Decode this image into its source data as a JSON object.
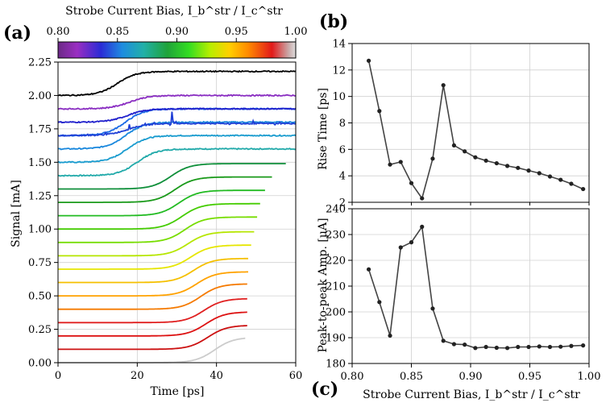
{
  "chart_data": [
    {
      "panel": "(a)",
      "type": "line",
      "xlabel": "Time [ps]",
      "ylabel": "Signal [mA]",
      "xlim": [
        0,
        60
      ],
      "ylim": [
        0,
        2.25
      ],
      "xticks": [
        "0",
        "20",
        "40",
        "60"
      ],
      "yticks": [
        "0.00",
        "0.25",
        "0.50",
        "0.75",
        "1.00",
        "1.25",
        "1.50",
        "1.75",
        "2.00",
        "2.25"
      ],
      "colorbar": {
        "title": "Strobe Current Bias, I_b^str / I_c^str",
        "range": [
          0.8,
          1.0
        ],
        "ticks": [
          "0.80",
          "0.85",
          "0.90",
          "0.95",
          "1.00"
        ]
      },
      "series": [
        {
          "baseline": 0.0,
          "rise_at": 39.5,
          "step": 0.19,
          "end": 47.3,
          "color": "#cccccc"
        },
        {
          "baseline": 0.1,
          "rise_at": 37.8,
          "step": 0.18,
          "end": 47.8,
          "color": "#cc1111"
        },
        {
          "baseline": 0.2,
          "rise_at": 37.3,
          "step": 0.18,
          "end": 47.8,
          "color": "#dd1111"
        },
        {
          "baseline": 0.3,
          "rise_at": 36.8,
          "step": 0.18,
          "end": 47.8,
          "color": "#e02020"
        },
        {
          "baseline": 0.4,
          "rise_at": 36.0,
          "step": 0.19,
          "end": 47.8,
          "color": "#f57a00"
        },
        {
          "baseline": 0.5,
          "rise_at": 35.0,
          "step": 0.18,
          "end": 48.0,
          "color": "#ffa200"
        },
        {
          "baseline": 0.6,
          "rise_at": 34.2,
          "step": 0.18,
          "end": 48.0,
          "color": "#f5c000"
        },
        {
          "baseline": 0.7,
          "rise_at": 33.5,
          "step": 0.18,
          "end": 48.8,
          "color": "#e6e600"
        },
        {
          "baseline": 0.8,
          "rise_at": 32.8,
          "step": 0.18,
          "end": 49.6,
          "color": "#b6e600"
        },
        {
          "baseline": 0.9,
          "rise_at": 32.0,
          "step": 0.19,
          "end": 50.4,
          "color": "#77dd00"
        },
        {
          "baseline": 1.0,
          "rise_at": 31.3,
          "step": 0.19,
          "end": 51.2,
          "color": "#44cc00"
        },
        {
          "baseline": 1.1,
          "rise_at": 30.5,
          "step": 0.19,
          "end": 52.4,
          "color": "#22bb22"
        },
        {
          "baseline": 1.2,
          "rise_at": 29.5,
          "step": 0.19,
          "end": 54.0,
          "color": "#1a9a1a"
        },
        {
          "baseline": 1.3,
          "rise_at": 28.5,
          "step": 0.19,
          "end": 57.6,
          "color": "#0f8f3a"
        },
        {
          "baseline": 1.4,
          "rise_at": 20.0,
          "step": 0.2,
          "end": 60,
          "color": "#22aaaa"
        },
        {
          "baseline": 1.5,
          "rise_at": 17.5,
          "step": 0.2,
          "end": 60,
          "color": "#1a9ccf"
        },
        {
          "baseline": 1.6,
          "rise_at": 17.0,
          "step": 0.2,
          "end": 60,
          "color": "#1a88dd"
        },
        {
          "baseline": 1.7,
          "rise_at": 17.0,
          "step": 0.2,
          "end": 60,
          "color": "#1a6ae6"
        },
        {
          "baseline": 1.7,
          "rise_at": 17.5,
          "step": 0.09,
          "end": 60,
          "color": "#1f3fd6",
          "noisy": true
        },
        {
          "baseline": 1.8,
          "rise_at": 17.5,
          "step": 0.1,
          "end": 60,
          "color": "#2020cc"
        },
        {
          "baseline": 1.9,
          "rise_at": 18.0,
          "step": 0.1,
          "end": 60,
          "color": "#8a2ec2"
        },
        {
          "baseline": 2.0,
          "rise_at": 15.0,
          "step": 0.18,
          "end": 60,
          "color": "#000000"
        }
      ]
    },
    {
      "panel": "(b)",
      "type": "line",
      "xlabel": "",
      "ylabel": "Rise Time [ps]",
      "xlim": [
        0.8,
        1.0
      ],
      "ylim": [
        2,
        14
      ],
      "yticks": [
        "2",
        "4",
        "6",
        "8",
        "10",
        "12",
        "14"
      ],
      "x": [
        0.814,
        0.823,
        0.832,
        0.841,
        0.85,
        0.859,
        0.868,
        0.877,
        0.886,
        0.895,
        0.904,
        0.913,
        0.922,
        0.931,
        0.94,
        0.949,
        0.958,
        0.967,
        0.976,
        0.985,
        0.995
      ],
      "values": [
        12.7,
        8.9,
        4.85,
        5.05,
        3.45,
        2.3,
        5.3,
        10.85,
        6.3,
        5.85,
        5.4,
        5.15,
        4.95,
        4.75,
        4.6,
        4.4,
        4.2,
        3.95,
        3.7,
        3.4,
        3.0
      ]
    },
    {
      "panel": "(c)",
      "type": "line",
      "xlabel": "Strobe Current Bias, I_b^str / I_c^str",
      "ylabel": "Peak-to-peak Amp. [μA]",
      "xlim": [
        0.8,
        1.0
      ],
      "ylim": [
        180,
        240
      ],
      "xticks": [
        "0.80",
        "0.85",
        "0.90",
        "0.95",
        "1.00"
      ],
      "yticks": [
        "180",
        "190",
        "200",
        "210",
        "220",
        "230",
        "240"
      ],
      "x": [
        0.814,
        0.823,
        0.832,
        0.841,
        0.85,
        0.859,
        0.868,
        0.877,
        0.886,
        0.895,
        0.904,
        0.913,
        0.922,
        0.931,
        0.94,
        0.949,
        0.958,
        0.967,
        0.976,
        0.985,
        0.995
      ],
      "values": [
        216.5,
        203.8,
        190.8,
        225.0,
        227.0,
        233.0,
        201.3,
        188.8,
        187.5,
        187.3,
        186.0,
        186.4,
        186.1,
        186.0,
        186.4,
        186.4,
        186.6,
        186.4,
        186.5,
        186.8,
        187.0
      ]
    }
  ]
}
